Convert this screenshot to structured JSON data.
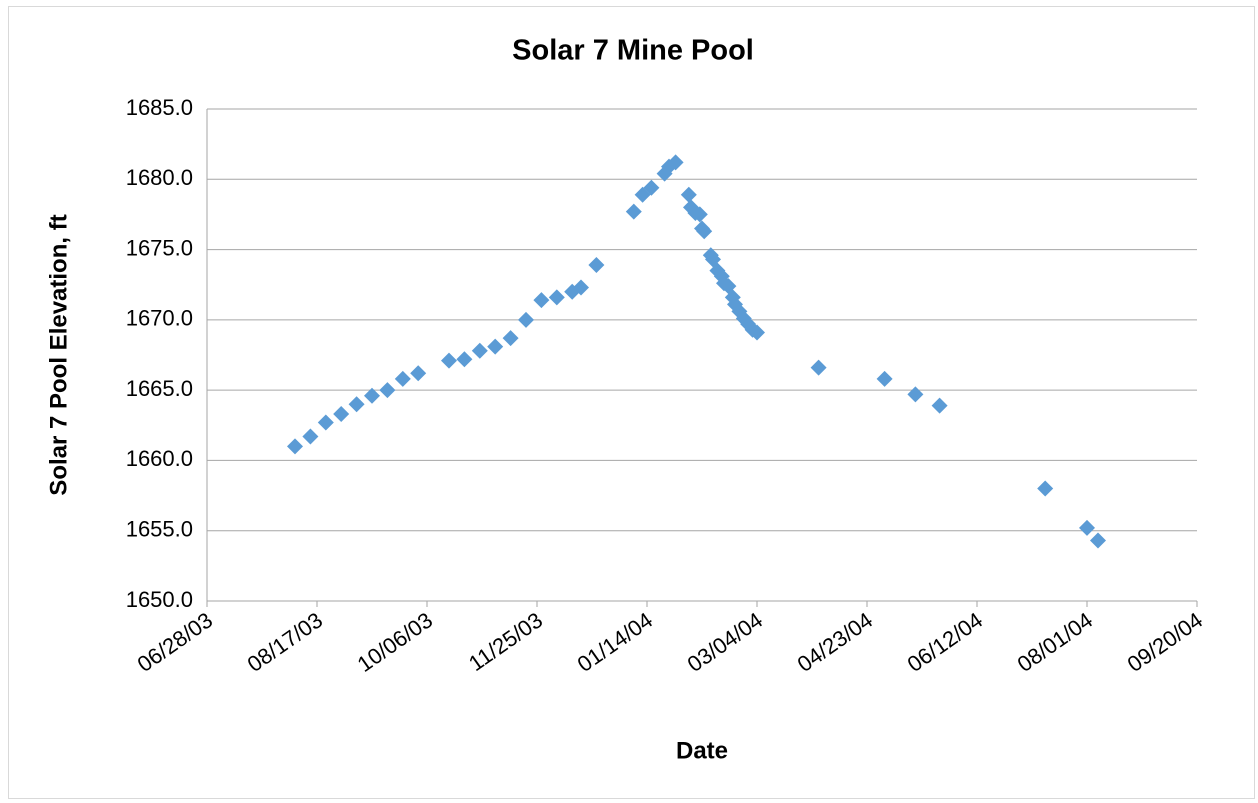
{
  "chart_data": {
    "type": "scatter",
    "title": "Solar 7 Mine Pool",
    "xlabel": "Date",
    "ylabel": "Solar 7 Pool Elevation, ft",
    "series": [
      {
        "name": "Solar 7",
        "color": "#5b9bd5",
        "x": [
          "08/07/03",
          "08/14/03",
          "08/21/03",
          "08/28/03",
          "09/04/03",
          "09/11/03",
          "09/18/03",
          "09/25/03",
          "10/02/03",
          "10/16/03",
          "10/23/03",
          "10/30/03",
          "11/06/03",
          "11/13/03",
          "11/20/03",
          "11/27/03",
          "12/04/03",
          "12/11/03",
          "12/15/03",
          "12/22/03",
          "01/08/04",
          "01/12/04",
          "01/16/04",
          "01/22/04",
          "01/24/04",
          "01/27/04",
          "02/02/04",
          "02/03/04",
          "02/05/04",
          "02/07/04",
          "02/08/04",
          "02/09/04",
          "02/12/04",
          "02/13/04",
          "02/15/04",
          "02/17/04",
          "02/18/04",
          "02/20/04",
          "02/22/04",
          "02/23/04",
          "02/25/04",
          "02/27/04",
          "02/29/04",
          "03/02/04",
          "03/04/04",
          "04/01/04",
          "05/01/04",
          "05/15/04",
          "05/26/04",
          "07/13/04",
          "08/01/04",
          "08/06/04"
        ],
        "values": [
          1661.0,
          1661.7,
          1662.7,
          1663.3,
          1664.0,
          1664.6,
          1665.0,
          1665.8,
          1666.2,
          1667.1,
          1667.2,
          1667.8,
          1668.1,
          1668.7,
          1670.0,
          1671.4,
          1671.6,
          1672.0,
          1672.3,
          1673.9,
          1677.7,
          1678.9,
          1679.4,
          1680.4,
          1680.9,
          1681.2,
          1678.9,
          1678.0,
          1677.6,
          1677.5,
          1676.5,
          1676.3,
          1674.6,
          1674.3,
          1673.5,
          1673.1,
          1672.6,
          1672.4,
          1671.6,
          1671.1,
          1670.6,
          1670.1,
          1669.7,
          1669.3,
          1669.1,
          1666.6,
          1665.8,
          1664.7,
          1663.9,
          1658.0,
          1655.2,
          1654.3
        ]
      }
    ],
    "xlim": [
      "06/28/03",
      "09/20/04"
    ],
    "xticks": [
      "06/28/03",
      "08/17/03",
      "10/06/03",
      "11/25/03",
      "01/14/04",
      "03/04/04",
      "04/23/04",
      "06/12/04",
      "08/01/04",
      "09/20/04"
    ],
    "ylim": [
      1650,
      1685
    ],
    "yticks": [
      {
        "value": 1650,
        "label": "1650.0"
      },
      {
        "value": 1655,
        "label": "1655.0"
      },
      {
        "value": 1660,
        "label": "1660.0"
      },
      {
        "value": 1665,
        "label": "1665.0"
      },
      {
        "value": 1670,
        "label": "1670.0"
      },
      {
        "value": 1675,
        "label": "1675.0"
      },
      {
        "value": 1680,
        "label": "1680.0"
      },
      {
        "value": 1685,
        "label": "1685.0"
      }
    ],
    "grid": true
  }
}
